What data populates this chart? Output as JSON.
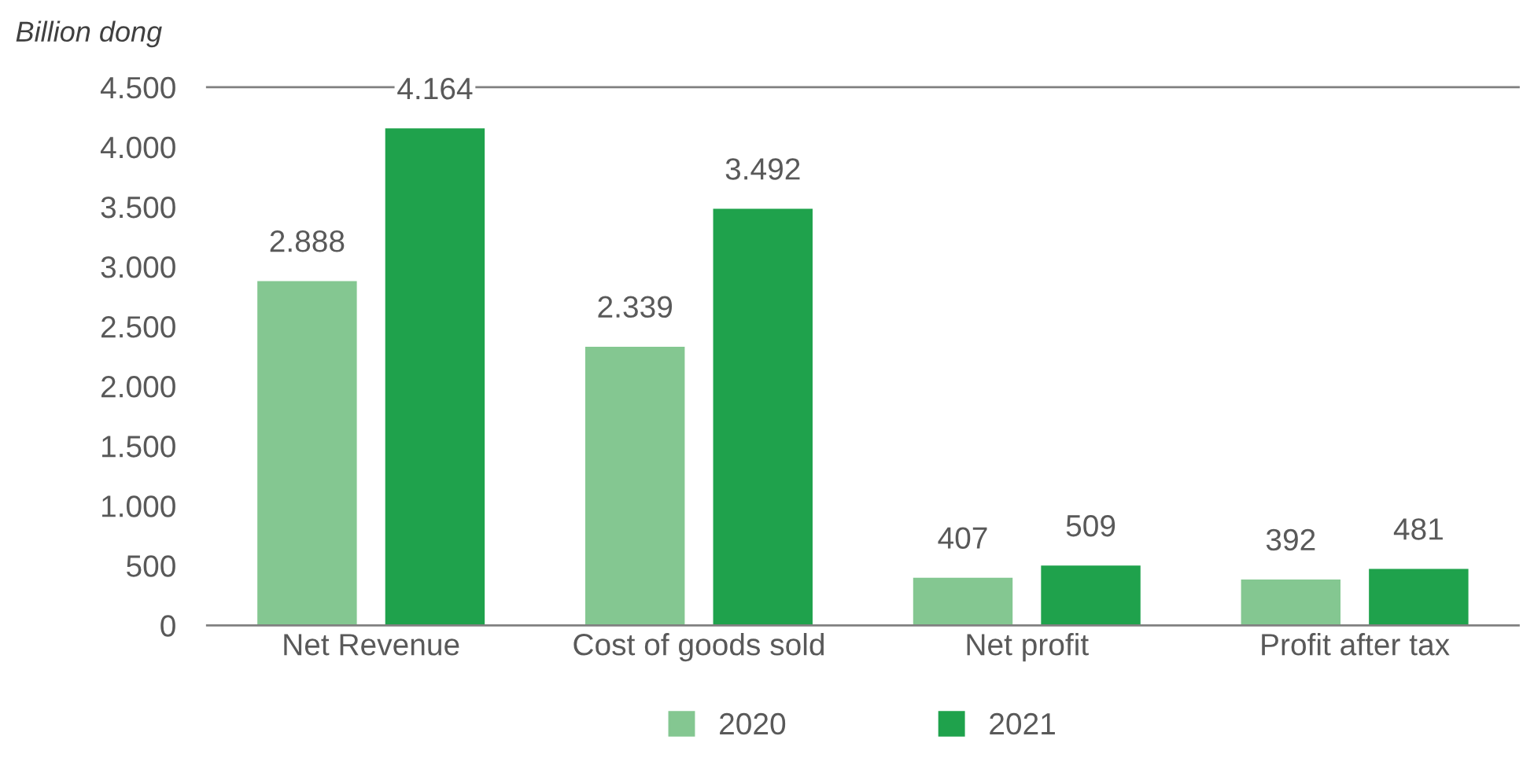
{
  "chart_data": {
    "type": "bar",
    "ylabel": "Billion dong",
    "categories": [
      "Net Revenue",
      "Cost of goods sold",
      "Net profit",
      "Profit after tax"
    ],
    "series": [
      {
        "name": "2020",
        "color": "#84c791",
        "values": [
          2888,
          2339,
          407,
          392
        ],
        "value_labels": [
          "2.888",
          "2.339",
          "407",
          "392"
        ]
      },
      {
        "name": "2021",
        "color": "#1fa24c",
        "values": [
          4164,
          3492,
          509,
          481
        ],
        "value_labels": [
          "4.164",
          "3.492",
          "509",
          "481"
        ]
      }
    ],
    "ylim": [
      0,
      4500
    ],
    "yticks": [
      {
        "value": 0,
        "label": "0"
      },
      {
        "value": 500,
        "label": "500"
      },
      {
        "value": 1000,
        "label": "1.000"
      },
      {
        "value": 1500,
        "label": "1.500"
      },
      {
        "value": 2000,
        "label": "2.000"
      },
      {
        "value": 2500,
        "label": "2.500"
      },
      {
        "value": 3000,
        "label": "3.000"
      },
      {
        "value": 3500,
        "label": "3.500"
      },
      {
        "value": 4000,
        "label": "4.000"
      },
      {
        "value": 4500,
        "label": "4.500"
      }
    ],
    "grid": false,
    "legend": "bottom"
  }
}
